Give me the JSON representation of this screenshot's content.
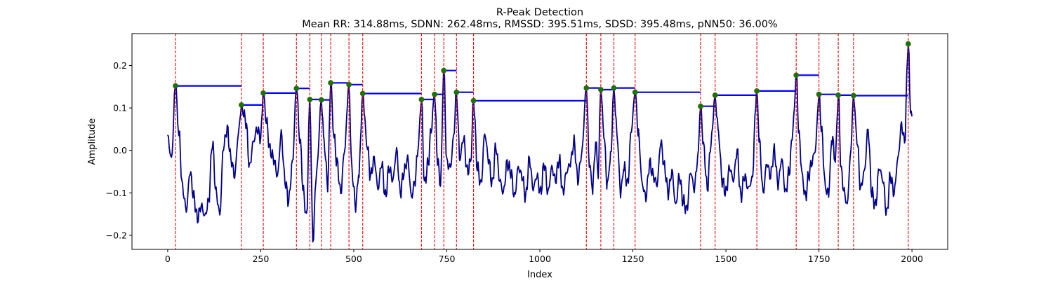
{
  "chart_data": {
    "type": "line",
    "title": "R-Peak Detection",
    "subtitle": "Mean RR: 314.88ms, SDNN: 262.48ms, RMSSD: 395.51ms, SDSD: 395.48ms, pNN50: 36.00%",
    "xlabel": "Index",
    "ylabel": "Amplitude",
    "xlim": [
      -96,
      2096
    ],
    "ylim": [
      -0.233,
      0.275
    ],
    "xticks": [
      0,
      250,
      500,
      750,
      1000,
      1250,
      1500,
      1750,
      2000
    ],
    "yticks": [
      -0.2,
      -0.1,
      0.0,
      0.1,
      0.2
    ],
    "grid": false,
    "colors": {
      "signal": "#00008b",
      "peak_line": "#ff0000",
      "peak_marker": "#008000",
      "rr_line": "#0000ff"
    },
    "peaks": {
      "x": [
        21,
        198,
        257,
        346,
        382,
        413,
        438,
        487,
        524,
        682,
        717,
        742,
        776,
        822,
        1125,
        1164,
        1199,
        1256,
        1432,
        1471,
        1583,
        1689,
        1750,
        1802,
        1843,
        1990
      ],
      "y": [
        0.152,
        0.107,
        0.135,
        0.146,
        0.12,
        0.119,
        0.159,
        0.155,
        0.134,
        0.12,
        0.132,
        0.188,
        0.137,
        0.117,
        0.147,
        0.143,
        0.147,
        0.137,
        0.104,
        0.13,
        0.14,
        0.177,
        0.132,
        0.13,
        0.129,
        0.251
      ]
    },
    "signal_anchors": {
      "x": [
        0,
        10,
        21,
        30,
        40,
        50,
        60,
        70,
        80,
        90,
        100,
        110,
        120,
        130,
        140,
        150,
        160,
        170,
        180,
        190,
        198,
        210,
        220,
        230,
        240,
        250,
        257,
        265,
        275,
        285,
        295,
        305,
        315,
        325,
        335,
        346,
        355,
        365,
        373,
        382,
        390,
        400,
        413,
        420,
        430,
        438,
        447,
        455,
        465,
        475,
        487,
        495,
        505,
        514,
        524,
        535,
        545,
        555,
        565,
        575,
        585,
        595,
        605,
        615,
        625,
        635,
        645,
        655,
        665,
        672,
        682,
        690,
        700,
        708,
        717,
        725,
        733,
        742,
        750,
        760,
        768,
        776,
        785,
        795,
        805,
        814,
        822,
        832,
        842,
        852,
        862,
        872,
        882,
        892,
        902,
        912,
        922,
        932,
        942,
        952,
        962,
        972,
        982,
        992,
        1002,
        1012,
        1022,
        1032,
        1042,
        1052,
        1062,
        1072,
        1082,
        1092,
        1102,
        1112,
        1125,
        1133,
        1142,
        1150,
        1157,
        1164,
        1172,
        1181,
        1190,
        1199,
        1208,
        1217,
        1226,
        1236,
        1246,
        1256,
        1265,
        1275,
        1285,
        1295,
        1305,
        1315,
        1325,
        1335,
        1345,
        1355,
        1365,
        1375,
        1385,
        1395,
        1405,
        1415,
        1424,
        1432,
        1440,
        1450,
        1460,
        1471,
        1480,
        1490,
        1500,
        1510,
        1520,
        1530,
        1540,
        1550,
        1560,
        1570,
        1583,
        1590,
        1600,
        1610,
        1620,
        1630,
        1640,
        1650,
        1660,
        1670,
        1680,
        1689,
        1697,
        1706,
        1714,
        1722,
        1730,
        1740,
        1750,
        1758,
        1767,
        1776,
        1785,
        1794,
        1802,
        1810,
        1818,
        1826,
        1834,
        1843,
        1852,
        1862,
        1872,
        1882,
        1892,
        1902,
        1912,
        1922,
        1932,
        1942,
        1952,
        1962,
        1972,
        1980,
        1990,
        1996,
        2000
      ],
      "y": [
        0.03,
        -0.02,
        0.152,
        0.04,
        -0.09,
        -0.14,
        -0.05,
        -0.11,
        -0.16,
        -0.13,
        -0.155,
        -0.12,
        0.02,
        -0.1,
        -0.15,
        0.01,
        0.05,
        -0.02,
        -0.06,
        0.04,
        0.107,
        0.07,
        -0.04,
        0.02,
        0.05,
        0.03,
        0.135,
        0.07,
        0.0,
        -0.02,
        -0.06,
        0.04,
        -0.07,
        -0.12,
        -0.03,
        0.146,
        0.03,
        -0.1,
        -0.16,
        0.12,
        -0.21,
        -0.05,
        0.119,
        0.02,
        -0.08,
        0.159,
        0.03,
        -0.03,
        -0.1,
        0.0,
        0.155,
        -0.05,
        -0.13,
        -0.05,
        0.134,
        0.02,
        -0.06,
        -0.02,
        -0.09,
        -0.03,
        -0.11,
        -0.04,
        -0.07,
        0.0,
        -0.1,
        -0.05,
        -0.02,
        -0.11,
        -0.07,
        0.0,
        0.12,
        -0.08,
        -0.03,
        0.05,
        0.132,
        -0.02,
        -0.08,
        0.188,
        -0.03,
        -0.04,
        0.03,
        0.137,
        -0.02,
        0.03,
        -0.05,
        -0.03,
        0.117,
        -0.04,
        -0.08,
        0.04,
        -0.02,
        -0.08,
        0.01,
        -0.07,
        -0.1,
        -0.03,
        -0.05,
        -0.11,
        -0.04,
        -0.06,
        -0.11,
        -0.02,
        -0.09,
        -0.06,
        -0.1,
        -0.03,
        -0.1,
        -0.04,
        -0.07,
        -0.02,
        -0.1,
        -0.05,
        -0.03,
        0.02,
        -0.07,
        -0.01,
        0.147,
        -0.03,
        -0.09,
        0.02,
        -0.05,
        0.143,
        0.04,
        -0.08,
        -0.02,
        0.147,
        0.03,
        -0.1,
        -0.04,
        -0.08,
        0.05,
        0.137,
        0.04,
        -0.08,
        -0.11,
        -0.03,
        -0.06,
        -0.08,
        0.02,
        -0.04,
        -0.1,
        -0.05,
        -0.13,
        -0.06,
        -0.12,
        -0.14,
        -0.05,
        -0.09,
        -0.02,
        0.104,
        0.01,
        -0.09,
        0.02,
        0.13,
        0.04,
        -0.07,
        -0.1,
        -0.04,
        -0.07,
        0.0,
        -0.11,
        -0.06,
        -0.09,
        -0.07,
        0.14,
        0.02,
        -0.1,
        -0.03,
        -0.06,
        0.0,
        -0.08,
        -0.02,
        -0.1,
        -0.05,
        0.05,
        0.177,
        0.03,
        -0.07,
        -0.11,
        -0.06,
        -0.03,
        0.0,
        0.132,
        0.04,
        -0.09,
        -0.1,
        0.03,
        -0.02,
        0.13,
        -0.05,
        -0.1,
        -0.13,
        -0.02,
        0.129,
        0.03,
        -0.09,
        -0.05,
        0.05,
        -0.1,
        -0.13,
        -0.04,
        -0.07,
        -0.15,
        -0.06,
        -0.1,
        -0.02,
        0.06,
        0.02,
        0.251,
        0.1,
        0.08
      ]
    }
  }
}
